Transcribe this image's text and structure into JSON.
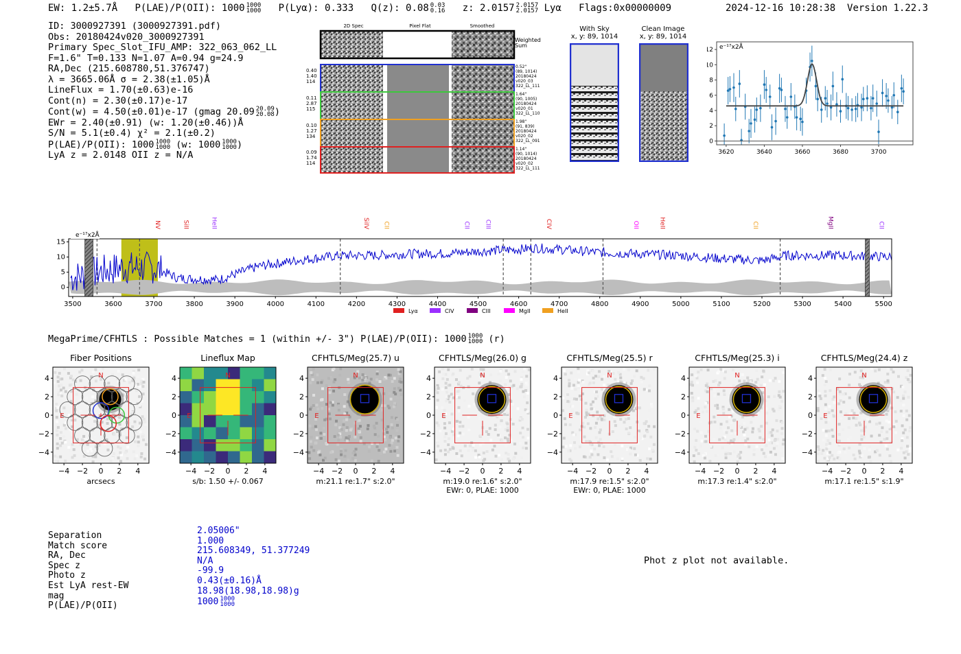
{
  "header": {
    "ew": "EW: 1.2±5.7Å",
    "plae_label": "P(LAE)/P(OII): 1000",
    "plae_hi": "1000",
    "plae_lo": "1000",
    "plya": "P(Lyα): 0.333",
    "qz_label": "Q(z): 0.08",
    "qz_hi": "0.03",
    "qz_lo": "0.16",
    "z_label": "z: 2.0157",
    "z_hi": "2.0157",
    "z_lo": "2.0157",
    "z_line": "Lyα",
    "flags": "Flags:0x00000009",
    "timestamp": "2024-12-16 10:28:38",
    "version": "Version 1.22.3"
  },
  "info": {
    "id": "ID: 3000927391 (3000927391.pdf)",
    "obs": "Obs: 20180424v020_3000927391",
    "primary": "Primary Spec_Slot_IFU_AMP: 322_063_062_LL",
    "fparams": "F=1.6\"  T=0.133  N=1.07  A=0.94  g=24.9",
    "radec": "RA,Dec (215.608780,51.376747)",
    "lambda": "λ = 3665.06Å  σ = 2.38(±1.05)Å",
    "lineflux": "LineFlux = 1.70(±0.63)e-16",
    "contn": "Cont(n) = 2.30(±0.17)e-17",
    "contw": "Cont(w) = 4.50(±0.01)e-17 (gmag 20.09",
    "contw_hi": "20.09",
    "contw_lo": "20.08",
    "ewr": "EWr = 2.40(±0.91) (w: 1.20(±0.46))Å",
    "sn": "S/N = 5.1(±0.4)  χ² = 2.1(±0.2)",
    "plae": "P(LAE)/P(OII): 1000",
    "plae_hi": "1000",
    "plae_lo": "1000",
    "plae_w": "(w: 1000",
    "plae_w_hi": "1000",
    "plae_w_lo": "1000",
    "lyaz": "LyA z = 2.0148  OII z = N/A"
  },
  "fiber_panel": {
    "col_headers": [
      "2D Spec",
      "Pixel Flat",
      "Smoothed"
    ],
    "weighted_sum": "Weighted Sum",
    "rows": [
      {
        "left": [
          "0.40",
          "1.40",
          "114"
        ],
        "right": [
          "0.52\"",
          "(89, 1014)",
          "20180424",
          "v020_03",
          "322_LL_111"
        ],
        "color": "#2030d0"
      },
      {
        "left": [
          "0.11",
          "2.87",
          "115"
        ],
        "right": [
          "1.64\"",
          "(90, 1005)",
          "20180424",
          "v020_01",
          "322_LL_110"
        ],
        "color": "#3cc83c"
      },
      {
        "left": [
          "0.10",
          "1.27",
          "134"
        ],
        "right": [
          "1.98\"",
          "(91, 839)",
          "20180424",
          "v020_02",
          "322_LL_091"
        ],
        "color": "#f0a020"
      },
      {
        "left": [
          "0.09",
          "1.74",
          "114"
        ],
        "right": [
          "1.14\"",
          "(90, 1014)",
          "20180424",
          "v020_02",
          "322_LL_111"
        ],
        "color": "#e02020"
      }
    ]
  },
  "sky_panels": {
    "with_sky_title": "With Sky",
    "with_sky_coords": "x, y: 89, 1014",
    "clean_title": "Clean Image",
    "clean_coords": "x, y: 89, 1014"
  },
  "zoom_chart": {
    "unit": "e⁻¹⁷x2Å",
    "x_ticks": [
      "3620",
      "3640",
      "3660",
      "3680",
      "3700"
    ],
    "y_ticks": [
      "0",
      "2",
      "4",
      "6",
      "8",
      "10",
      "12"
    ]
  },
  "spectrum_lines": [
    "NV",
    "SiII",
    "HeII",
    "SiIV",
    "CII",
    "CII",
    "CIII",
    "CIV",
    "OII",
    "HeII",
    "CII",
    "MgII",
    "CII"
  ],
  "spectrum_legend": [
    "Lyα",
    "CIV",
    "CIII",
    "MgII",
    "HeII"
  ],
  "matches": {
    "title": "MegaPrime/CFHTLS : Possible Matches = 1 (within +/- 3\")  P(LAE)/P(OII): 1000",
    "title_hi": "1000",
    "title_lo": "1000",
    "title_suffix": "(r)"
  },
  "cutouts": [
    {
      "title": "Fiber Positions",
      "cap1": "arcsecs",
      "cap2": ""
    },
    {
      "title": "Lineflux Map",
      "cap1": "s/b: 1.50 +/- 0.067",
      "cap2": ""
    },
    {
      "title": "CFHTLS/Meg(25.7) u",
      "cap1": "m:21.1  re:1.7\"  s:2.0\"",
      "cap2": ""
    },
    {
      "title": "CFHTLS/Meg(26.0) g",
      "cap1": "m:19.0  re:1.6\"  s:2.0\"",
      "cap2": "EWr: 0, PLAE: 1000"
    },
    {
      "title": "CFHTLS/Meg(25.5) r",
      "cap1": "m:17.9  re:1.5\"  s:2.0\"",
      "cap2": "EWr: 0, PLAE: 1000"
    },
    {
      "title": "CFHTLS/Meg(25.3) i",
      "cap1": "m:17.3  re:1.4\"  s:2.0\"",
      "cap2": ""
    },
    {
      "title": "CFHTLS/Meg(24.4) z",
      "cap1": "m:17.1  re:1.5\"  s:1.9\"",
      "cap2": ""
    }
  ],
  "cutout_axis": {
    "ticks": [
      "-4",
      "-2",
      "0",
      "2",
      "4"
    ],
    "north": "N",
    "east": "E"
  },
  "match_table": {
    "labels": [
      "Separation",
      "Match score",
      "RA, Dec",
      "Spec z",
      "Photo z",
      "Est LyA rest-EW",
      "mag",
      "P(LAE)/P(OII)"
    ],
    "values": [
      "2.05006\"",
      "1.000",
      "215.608349, 51.377249",
      "N/A",
      "-99.9",
      "0.43(±0.16)Å",
      "18.98(18.98,18.98)g",
      "1000"
    ],
    "plae_hi": "1000",
    "plae_lo": "1000"
  },
  "photz": "Phot z plot not available.",
  "chart_data": [
    {
      "type": "scatter",
      "title": "",
      "ylabel": "e⁻¹⁷x2Å",
      "xlim": [
        3615,
        3718
      ],
      "ylim": [
        -0.5,
        13
      ],
      "x": [
        3619,
        3621,
        3622,
        3624,
        3625,
        3627,
        3628,
        3630,
        3632,
        3633,
        3635,
        3636,
        3638,
        3640,
        3641,
        3643,
        3644,
        3646,
        3648,
        3649,
        3651,
        3652,
        3654,
        3656,
        3657,
        3659,
        3660,
        3662,
        3664,
        3665,
        3667,
        3668,
        3670,
        3672,
        3673,
        3675,
        3676,
        3678,
        3680,
        3681,
        3683,
        3684,
        3686,
        3688,
        3689,
        3691,
        3692,
        3694,
        3696,
        3697,
        3699,
        3700,
        3702,
        3704,
        3705,
        3707,
        3708,
        3710,
        3712,
        3713
      ],
      "y": [
        0.7,
        6.6,
        6.8,
        7.0,
        4.2,
        7.5,
        0.1,
        4.5,
        1.3,
        2.3,
        2.8,
        4.1,
        4.3,
        7.4,
        6.7,
        5.8,
        1.8,
        2.6,
        6.9,
        6.7,
        4.2,
        3.1,
        5.8,
        4.5,
        3.1,
        2.9,
        2.5,
        6.6,
        9.7,
        10.5,
        7.2,
        5.5,
        4.1,
        5.6,
        4.9,
        4.4,
        7.2,
        4.8,
        3.9,
        8.1,
        4.6,
        4.3,
        4.1,
        4.2,
        4.7,
        4.4,
        5.5,
        5.6,
        4.3,
        5.6,
        4.9,
        1.2,
        6.3,
        5.9,
        5.3,
        4.4,
        6.0,
        3.8,
        6.9,
        6.5
      ],
      "fit_continuum": 4.6,
      "fit_peak": 10.1,
      "fit_center": 3665.06,
      "fit_sigma": 2.38
    },
    {
      "type": "line",
      "title": "",
      "ylabel": "e⁻¹⁷x2Å",
      "xlim": [
        3490,
        5520
      ],
      "ylim": [
        -3,
        16
      ],
      "x_ticks": [
        3500,
        3600,
        3700,
        3800,
        3900,
        4000,
        4100,
        4200,
        4300,
        4400,
        4500,
        4600,
        4700,
        4800,
        4900,
        5000,
        5100,
        5200,
        5300,
        5400,
        5500
      ],
      "y_ticks": [
        0,
        5,
        10,
        15
      ],
      "continuum_knots_x": [
        3490,
        3560,
        3620,
        3700,
        3760,
        3860,
        3960,
        4060,
        4160,
        4240,
        4320,
        4420,
        4520,
        4600,
        4640,
        4700,
        4800,
        4900,
        5000,
        5100,
        5200,
        5260,
        5400,
        5520
      ],
      "continuum_knots_y": [
        3.0,
        5.0,
        6.5,
        6.5,
        3.0,
        2.5,
        7.0,
        9.0,
        10.5,
        10.5,
        11.0,
        11.2,
        12.0,
        12.5,
        13.0,
        12.5,
        11.5,
        11.0,
        10.5,
        9.5,
        8.8,
        10.5,
        10.5,
        10.0
      ],
      "shaded_region": [
        3620,
        3710
      ],
      "dashed_lines": [
        3560,
        3665,
        4160,
        4562,
        4630,
        4808,
        5245
      ],
      "hatched_bands": [
        [
          3530,
          3550
        ],
        [
          5455,
          5465
        ]
      ],
      "legend": [
        "Lyα",
        "CIV",
        "CIII",
        "MgII",
        "HeII"
      ]
    }
  ]
}
